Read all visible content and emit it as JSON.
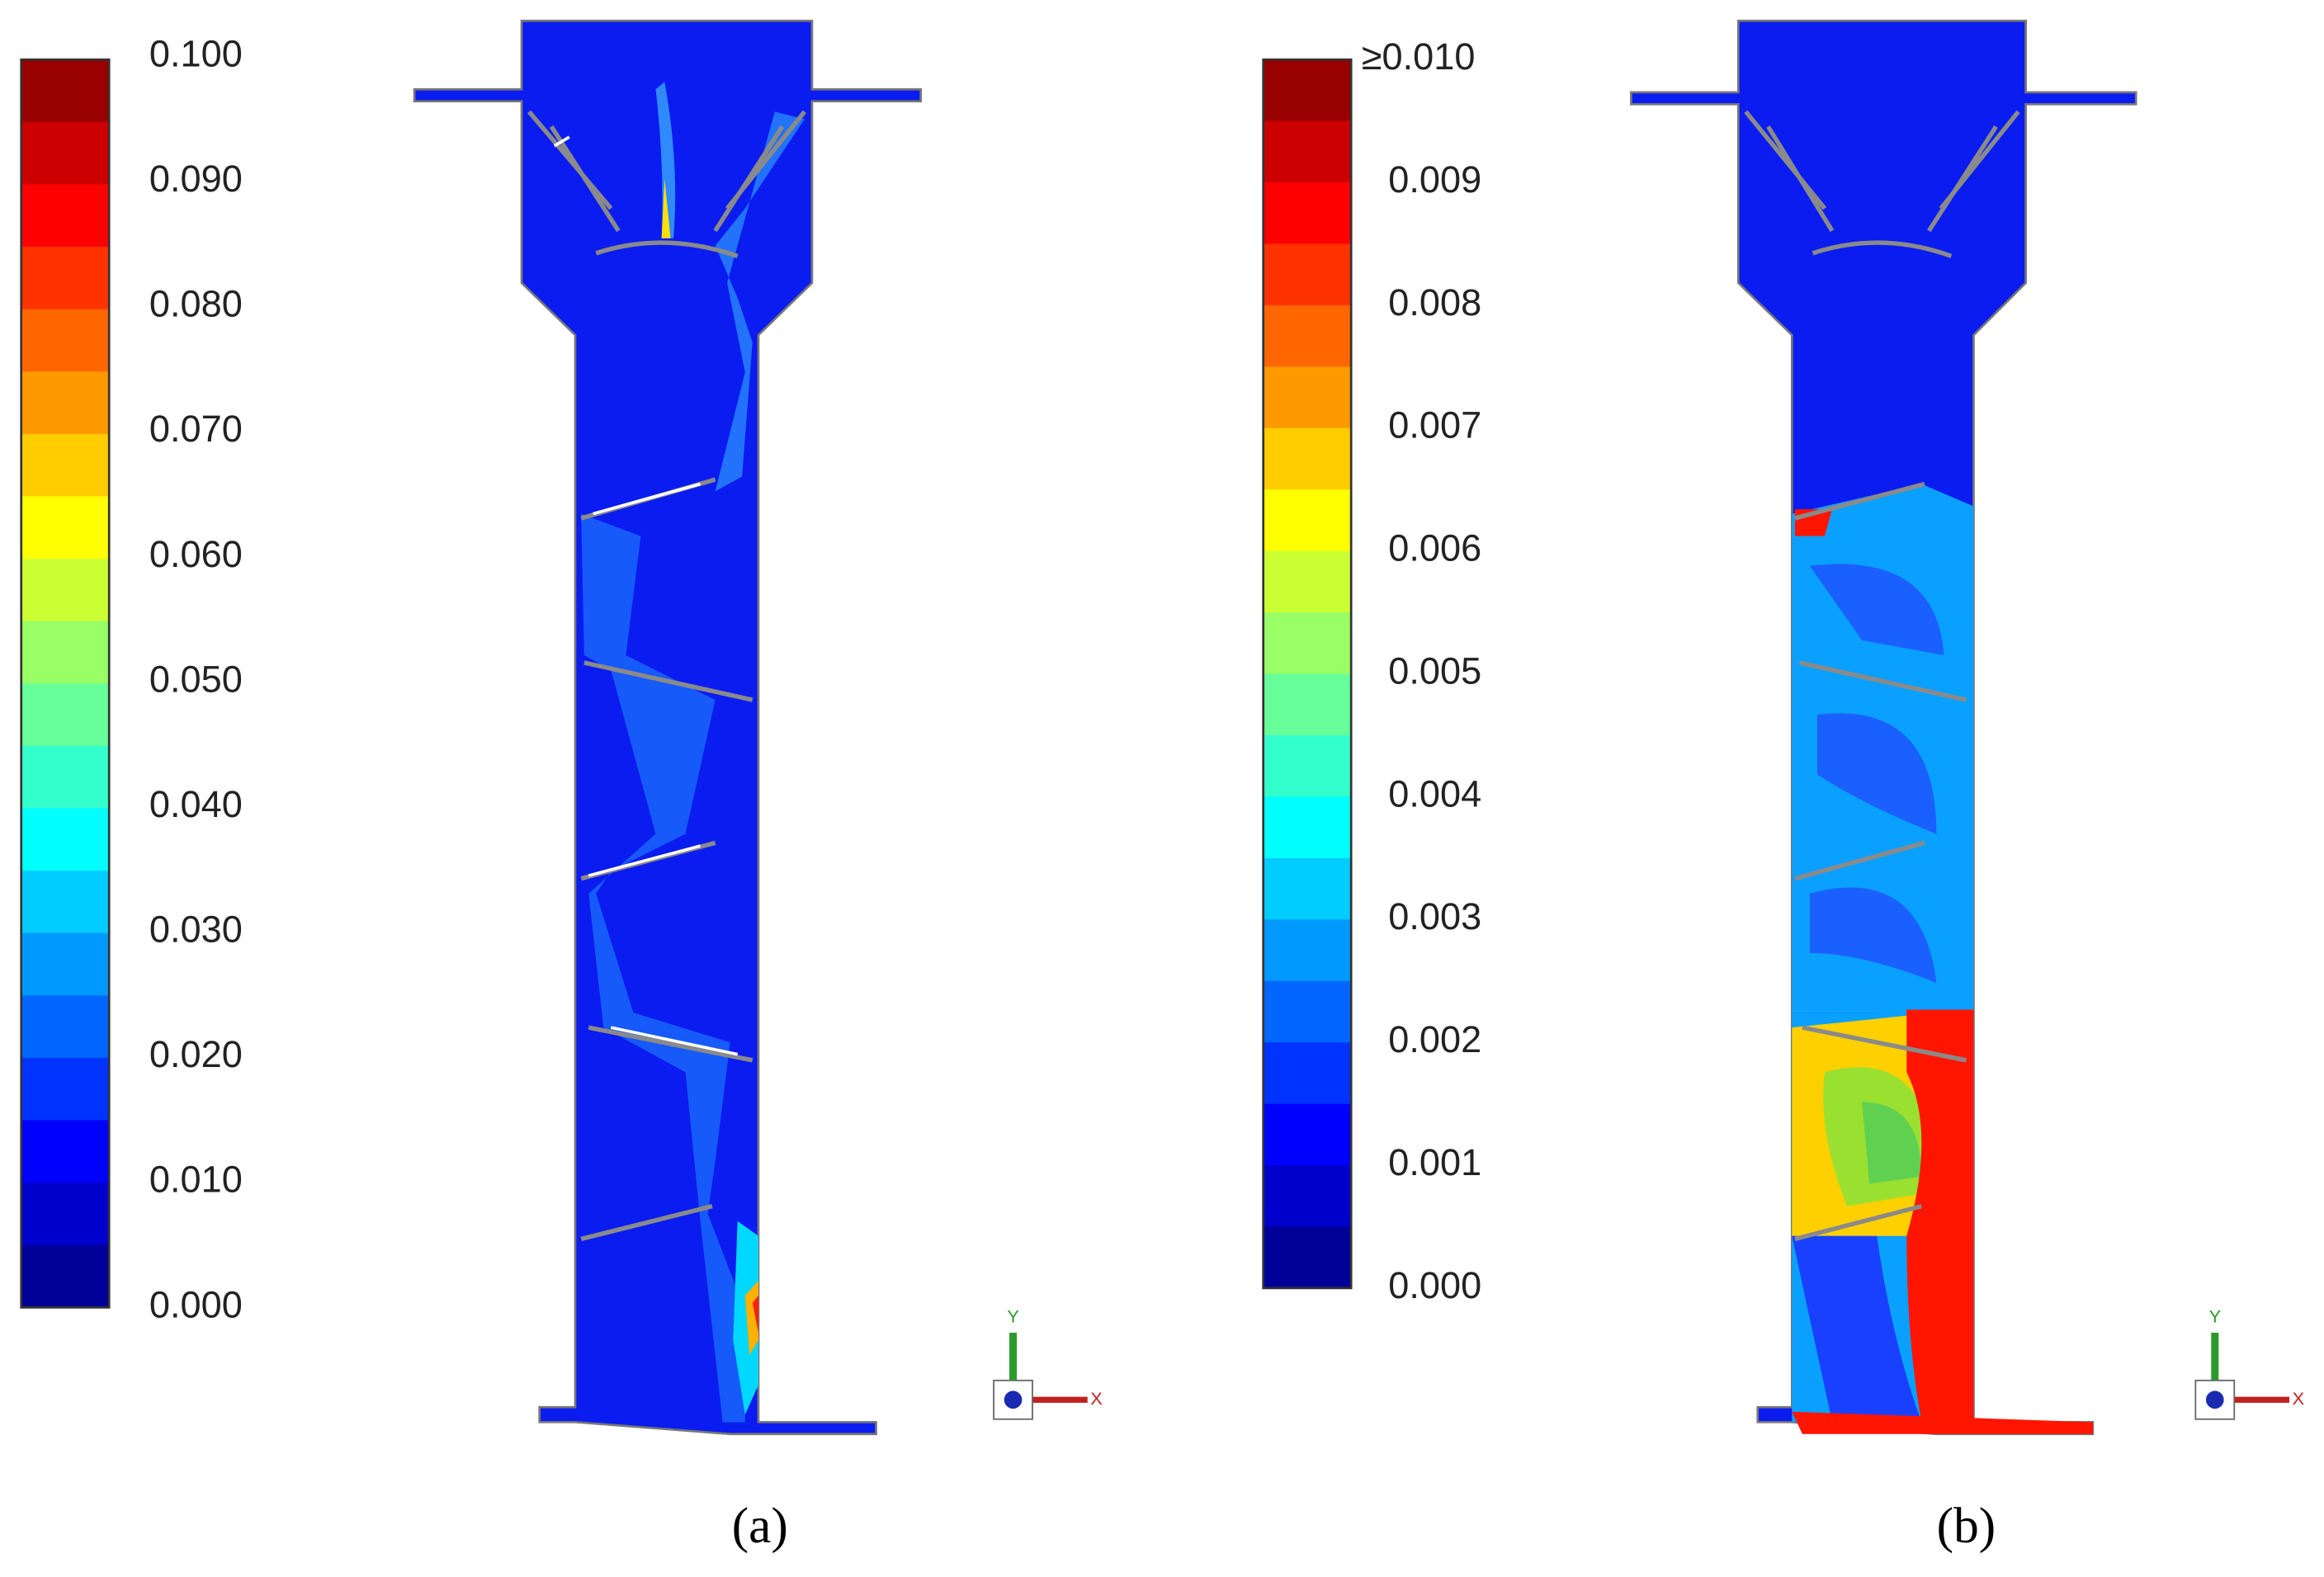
{
  "panels": [
    {
      "colorbar": {
        "labels": [
          "0.100",
          "0.090",
          "0.080",
          "0.070",
          "0.060",
          "0.050",
          "0.040",
          "0.030",
          "0.020",
          "0.010",
          "0.000"
        ]
      },
      "triad": {
        "y": "Y",
        "x": "X"
      },
      "caption": "(a)"
    },
    {
      "colorbar": {
        "labels": [
          "≥0.010",
          "0.009",
          "0.008",
          "0.007",
          "0.006",
          "0.005",
          "0.004",
          "0.003",
          "0.002",
          "0.001",
          "0.000"
        ]
      },
      "triad": {
        "y": "Y",
        "x": "X"
      },
      "caption": "(b)"
    }
  ]
}
